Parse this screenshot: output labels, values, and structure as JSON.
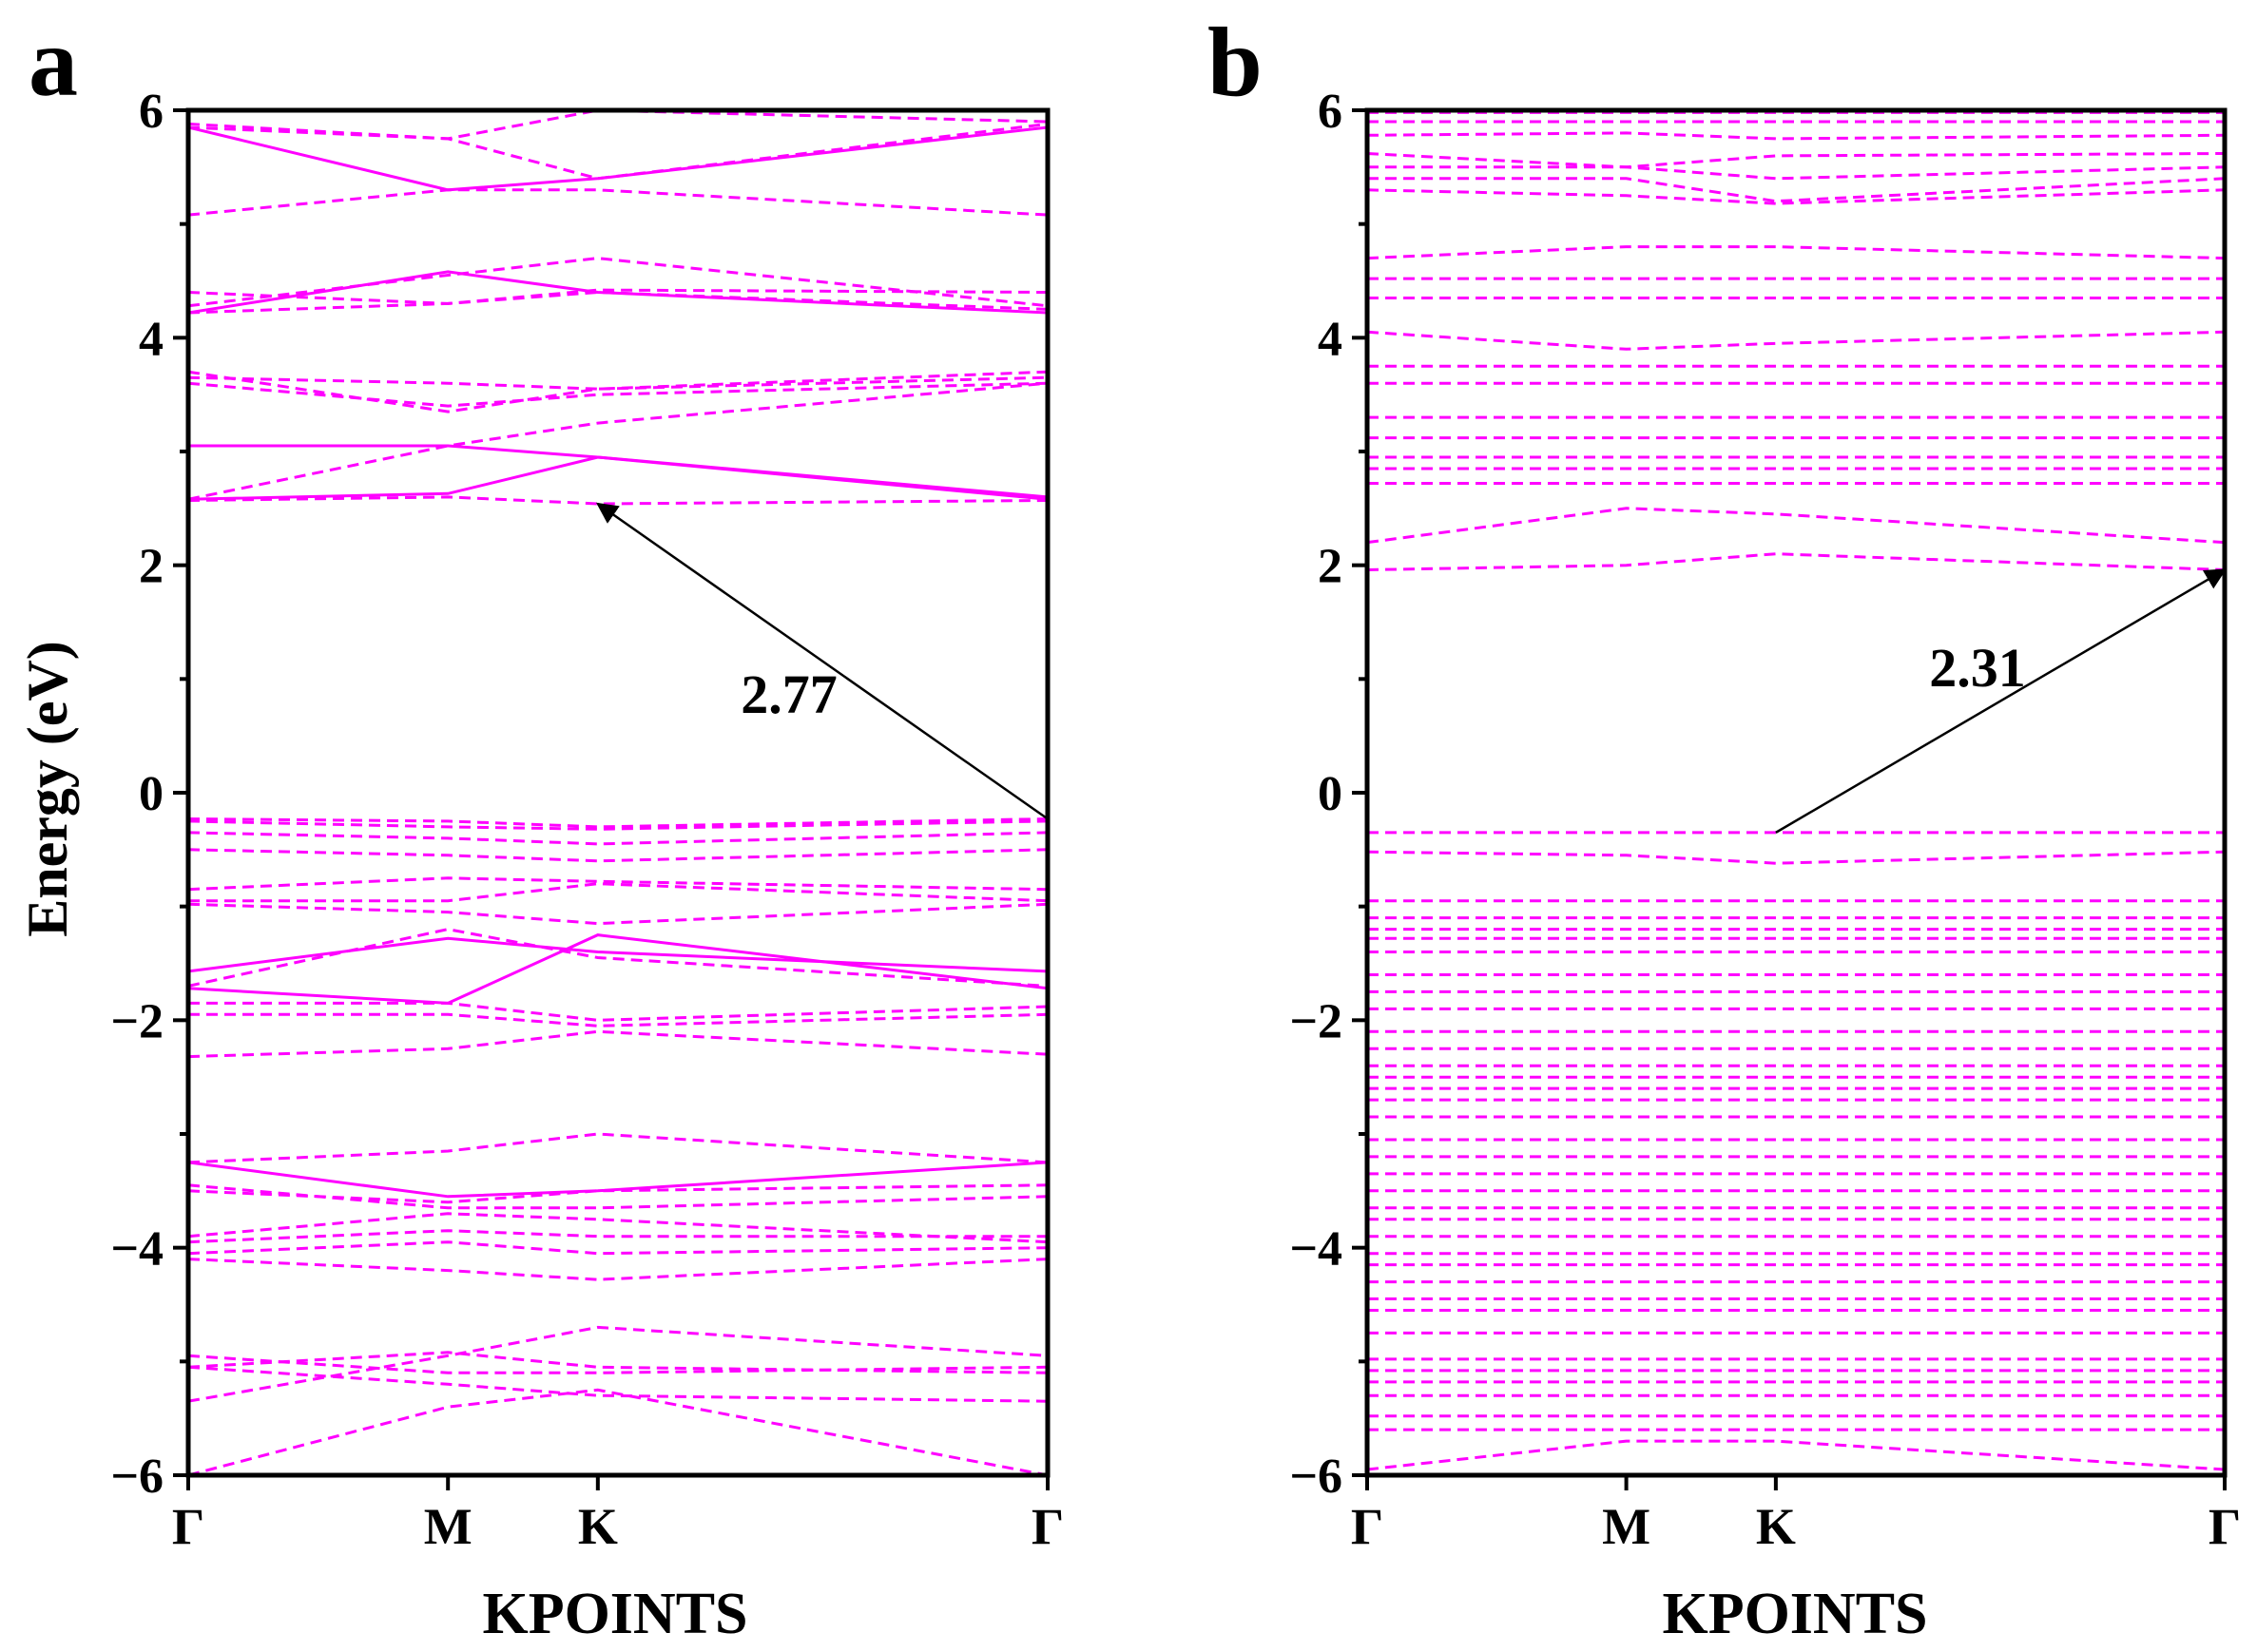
{
  "figure": {
    "band_color": "#ff00ff",
    "axis_color": "#000000"
  },
  "chart_data": [
    {
      "panel_label": "a",
      "type": "line",
      "xlabel": "KPOINTS",
      "ylabel": "Energy (eV)",
      "ylim": [
        -6,
        6
      ],
      "x_ticks": [
        "Γ",
        "M",
        "K",
        "Γ"
      ],
      "x_tick_positions": [
        0,
        1,
        1.577,
        3.309
      ],
      "y_ticks": [
        "−6",
        "−4",
        "−2",
        "0",
        "2",
        "4",
        "6"
      ],
      "annotation": {
        "text": "2.77",
        "arrow_from": [
          3.309,
          -0.23
        ],
        "arrow_to": [
          1.577,
          2.54
        ]
      },
      "bands": [
        {
          "style": "dashed",
          "values": [
            -6.0,
            -5.4,
            -5.25,
            -6.0
          ]
        },
        {
          "style": "dashed",
          "values": [
            -5.35,
            -4.95,
            -4.7,
            -4.95
          ]
        },
        {
          "style": "dashed",
          "values": [
            -5.05,
            -4.92,
            -5.05,
            -5.1
          ]
        },
        {
          "style": "dashed",
          "values": [
            -4.95,
            -5.1,
            -5.1,
            -5.05
          ]
        },
        {
          "style": "dashed",
          "values": [
            -5.05,
            -5.2,
            -5.3,
            -5.35
          ]
        },
        {
          "style": "dashed",
          "values": [
            -4.1,
            -4.2,
            -4.28,
            -4.1
          ]
        },
        {
          "style": "dashed",
          "values": [
            -4.05,
            -3.95,
            -4.05,
            -4.0
          ]
        },
        {
          "style": "dashed",
          "values": [
            -3.95,
            -3.85,
            -3.9,
            -3.9
          ]
        },
        {
          "style": "dashed",
          "values": [
            -3.9,
            -3.7,
            -3.75,
            -3.95
          ]
        },
        {
          "style": "dashed",
          "values": [
            -3.5,
            -3.6,
            -3.5,
            -3.45
          ]
        },
        {
          "style": "dashed",
          "values": [
            -3.45,
            -3.65,
            -3.65,
            -3.55
          ]
        },
        {
          "style": "dashed",
          "values": [
            -3.25,
            -3.15,
            -3.0,
            -3.25
          ]
        },
        {
          "style": "solid",
          "values": [
            -3.25,
            -3.55,
            -3.5,
            -3.25
          ]
        },
        {
          "style": "dashed",
          "values": [
            -2.32,
            -2.25,
            -2.1,
            -2.3
          ]
        },
        {
          "style": "dashed",
          "values": [
            -1.95,
            -1.95,
            -2.05,
            -1.95
          ]
        },
        {
          "style": "dashed",
          "values": [
            -1.85,
            -1.85,
            -2.0,
            -1.88
          ]
        },
        {
          "style": "solid",
          "values": [
            -1.72,
            -1.85,
            -1.25,
            -1.72
          ]
        },
        {
          "style": "dashed",
          "values": [
            -1.7,
            -1.2,
            -1.45,
            -1.7
          ]
        },
        {
          "style": "solid",
          "values": [
            -1.57,
            -1.28,
            -1.4,
            -1.57
          ]
        },
        {
          "style": "dashed",
          "values": [
            -0.98,
            -1.05,
            -1.15,
            -0.98
          ]
        },
        {
          "style": "dashed",
          "values": [
            -0.95,
            -0.95,
            -0.8,
            -0.95
          ]
        },
        {
          "style": "dashed",
          "values": [
            -0.85,
            -0.75,
            -0.78,
            -0.85
          ]
        },
        {
          "style": "dashed",
          "values": [
            -0.5,
            -0.55,
            -0.6,
            -0.5
          ]
        },
        {
          "style": "dashed",
          "values": [
            -0.35,
            -0.4,
            -0.45,
            -0.35
          ]
        },
        {
          "style": "dashed",
          "values": [
            -0.25,
            -0.3,
            -0.32,
            -0.25
          ]
        },
        {
          "style": "dashed",
          "values": [
            -0.23,
            -0.25,
            -0.3,
            -0.23
          ]
        },
        {
          "style": "dashed",
          "values": [
            2.57,
            2.6,
            2.54,
            2.57
          ]
        },
        {
          "style": "solid",
          "values": [
            2.58,
            2.63,
            2.95,
            2.58
          ]
        },
        {
          "style": "dashed",
          "values": [
            2.58,
            3.05,
            3.25,
            3.6
          ]
        },
        {
          "style": "solid",
          "values": [
            3.05,
            3.05,
            2.95,
            2.6
          ]
        },
        {
          "style": "dashed",
          "values": [
            3.6,
            3.4,
            3.5,
            3.6
          ]
        },
        {
          "style": "dashed",
          "values": [
            3.65,
            3.6,
            3.55,
            3.7
          ]
        },
        {
          "style": "dashed",
          "values": [
            3.7,
            3.35,
            3.55,
            3.65
          ]
        },
        {
          "style": "dashed",
          "values": [
            4.22,
            4.3,
            4.4,
            4.25
          ]
        },
        {
          "style": "dashed",
          "values": [
            4.28,
            4.55,
            4.7,
            4.28
          ]
        },
        {
          "style": "solid",
          "values": [
            4.22,
            4.58,
            4.4,
            4.22
          ]
        },
        {
          "style": "dashed",
          "values": [
            4.4,
            4.3,
            4.42,
            4.4
          ]
        },
        {
          "style": "dashed",
          "values": [
            5.08,
            5.3,
            5.3,
            5.08
          ]
        },
        {
          "style": "solid",
          "values": [
            5.85,
            5.3,
            5.4,
            5.85
          ]
        },
        {
          "style": "dashed",
          "values": [
            5.85,
            5.75,
            5.4,
            5.88
          ]
        },
        {
          "style": "dashed",
          "values": [
            5.88,
            5.75,
            6.0,
            5.9
          ]
        }
      ]
    },
    {
      "panel_label": "b",
      "type": "line",
      "xlabel": "KPOINTS",
      "ylabel": "",
      "ylim": [
        -6,
        6
      ],
      "x_ticks": [
        "Γ",
        "M",
        "K",
        "Γ"
      ],
      "x_tick_positions": [
        0,
        1,
        1.577,
        3.309
      ],
      "y_ticks": [
        "−6",
        "−4",
        "−2",
        "0",
        "2",
        "4",
        "6"
      ],
      "annotation": {
        "text": "2.31",
        "arrow_from": [
          1.577,
          -0.35
        ],
        "arrow_to": [
          3.309,
          1.96
        ]
      },
      "bands": [
        {
          "style": "dashed",
          "values": [
            -5.95,
            -5.7,
            -5.7,
            -5.95
          ]
        },
        {
          "style": "dashed",
          "values": [
            -5.6,
            -5.6,
            -5.6,
            -5.6
          ]
        },
        {
          "style": "dashed",
          "values": [
            -5.48,
            -5.48,
            -5.48,
            -5.48
          ]
        },
        {
          "style": "dashed",
          "values": [
            -5.3,
            -5.3,
            -5.3,
            -5.3
          ]
        },
        {
          "style": "dashed",
          "values": [
            -5.18,
            -5.18,
            -5.18,
            -5.18
          ]
        },
        {
          "style": "dashed",
          "values": [
            -5.08,
            -5.08,
            -5.08,
            -5.08
          ]
        },
        {
          "style": "dashed",
          "values": [
            -4.98,
            -4.98,
            -4.98,
            -4.98
          ]
        },
        {
          "style": "dashed",
          "values": [
            -4.75,
            -4.75,
            -4.75,
            -4.75
          ]
        },
        {
          "style": "dashed",
          "values": [
            -4.55,
            -4.55,
            -4.55,
            -4.55
          ]
        },
        {
          "style": "dashed",
          "values": [
            -4.45,
            -4.45,
            -4.45,
            -4.45
          ]
        },
        {
          "style": "dashed",
          "values": [
            -4.3,
            -4.3,
            -4.3,
            -4.3
          ]
        },
        {
          "style": "dashed",
          "values": [
            -4.15,
            -4.15,
            -4.15,
            -4.15
          ]
        },
        {
          "style": "dashed",
          "values": [
            -4.05,
            -4.05,
            -4.05,
            -4.05
          ]
        },
        {
          "style": "dashed",
          "values": [
            -3.9,
            -3.9,
            -3.9,
            -3.9
          ]
        },
        {
          "style": "dashed",
          "values": [
            -3.75,
            -3.75,
            -3.75,
            -3.75
          ]
        },
        {
          "style": "dashed",
          "values": [
            -3.65,
            -3.65,
            -3.65,
            -3.65
          ]
        },
        {
          "style": "dashed",
          "values": [
            -3.5,
            -3.5,
            -3.5,
            -3.5
          ]
        },
        {
          "style": "dashed",
          "values": [
            -3.35,
            -3.35,
            -3.35,
            -3.35
          ]
        },
        {
          "style": "dashed",
          "values": [
            -3.2,
            -3.2,
            -3.2,
            -3.2
          ]
        },
        {
          "style": "dashed",
          "values": [
            -3.05,
            -3.05,
            -3.05,
            -3.05
          ]
        },
        {
          "style": "dashed",
          "values": [
            -2.85,
            -2.85,
            -2.85,
            -2.85
          ]
        },
        {
          "style": "dashed",
          "values": [
            -2.7,
            -2.7,
            -2.7,
            -2.7
          ]
        },
        {
          "style": "dashed",
          "values": [
            -2.6,
            -2.6,
            -2.6,
            -2.6
          ]
        },
        {
          "style": "dashed",
          "values": [
            -2.5,
            -2.5,
            -2.5,
            -2.5
          ]
        },
        {
          "style": "dashed",
          "values": [
            -2.4,
            -2.4,
            -2.4,
            -2.4
          ]
        },
        {
          "style": "dashed",
          "values": [
            -2.25,
            -2.25,
            -2.25,
            -2.25
          ]
        },
        {
          "style": "dashed",
          "values": [
            -2.1,
            -2.1,
            -2.1,
            -2.1
          ]
        },
        {
          "style": "dashed",
          "values": [
            -1.9,
            -1.9,
            -1.9,
            -1.9
          ]
        },
        {
          "style": "dashed",
          "values": [
            -1.75,
            -1.75,
            -1.75,
            -1.75
          ]
        },
        {
          "style": "dashed",
          "values": [
            -1.6,
            -1.6,
            -1.6,
            -1.6
          ]
        },
        {
          "style": "dashed",
          "values": [
            -1.4,
            -1.4,
            -1.4,
            -1.4
          ]
        },
        {
          "style": "dashed",
          "values": [
            -1.28,
            -1.28,
            -1.28,
            -1.28
          ]
        },
        {
          "style": "dashed",
          "values": [
            -1.2,
            -1.2,
            -1.2,
            -1.2
          ]
        },
        {
          "style": "dashed",
          "values": [
            -1.1,
            -1.1,
            -1.1,
            -1.1
          ]
        },
        {
          "style": "dashed",
          "values": [
            -0.95,
            -0.95,
            -0.95,
            -0.95
          ]
        },
        {
          "style": "dashed",
          "values": [
            -0.52,
            -0.55,
            -0.62,
            -0.52
          ]
        },
        {
          "style": "dashed",
          "values": [
            -0.35,
            -0.35,
            -0.35,
            -0.35
          ]
        },
        {
          "style": "dashed",
          "values": [
            1.96,
            2.0,
            2.1,
            1.96
          ]
        },
        {
          "style": "dashed",
          "values": [
            2.2,
            2.5,
            2.45,
            2.2
          ]
        },
        {
          "style": "dashed",
          "values": [
            2.72,
            2.72,
            2.72,
            2.72
          ]
        },
        {
          "style": "dashed",
          "values": [
            2.85,
            2.85,
            2.85,
            2.85
          ]
        },
        {
          "style": "dashed",
          "values": [
            2.95,
            2.95,
            2.95,
            2.95
          ]
        },
        {
          "style": "dashed",
          "values": [
            3.12,
            3.12,
            3.12,
            3.12
          ]
        },
        {
          "style": "dashed",
          "values": [
            3.3,
            3.3,
            3.3,
            3.3
          ]
        },
        {
          "style": "dashed",
          "values": [
            3.6,
            3.6,
            3.6,
            3.6
          ]
        },
        {
          "style": "dashed",
          "values": [
            3.75,
            3.75,
            3.75,
            3.75
          ]
        },
        {
          "style": "dashed",
          "values": [
            4.05,
            3.9,
            3.95,
            4.05
          ]
        },
        {
          "style": "dashed",
          "values": [
            4.35,
            4.35,
            4.35,
            4.35
          ]
        },
        {
          "style": "dashed",
          "values": [
            4.52,
            4.52,
            4.52,
            4.52
          ]
        },
        {
          "style": "dashed",
          "values": [
            4.7,
            4.8,
            4.8,
            4.7
          ]
        },
        {
          "style": "dashed",
          "values": [
            5.3,
            5.25,
            5.18,
            5.3
          ]
        },
        {
          "style": "dashed",
          "values": [
            5.4,
            5.4,
            5.2,
            5.4
          ]
        },
        {
          "style": "dashed",
          "values": [
            5.5,
            5.5,
            5.4,
            5.5
          ]
        },
        {
          "style": "dashed",
          "values": [
            5.62,
            5.5,
            5.6,
            5.62
          ]
        },
        {
          "style": "dashed",
          "values": [
            5.78,
            5.8,
            5.75,
            5.78
          ]
        },
        {
          "style": "dashed",
          "values": [
            5.9,
            5.9,
            5.9,
            5.9
          ]
        },
        {
          "style": "dashed",
          "values": [
            5.98,
            5.98,
            5.98,
            5.98
          ]
        }
      ]
    }
  ]
}
